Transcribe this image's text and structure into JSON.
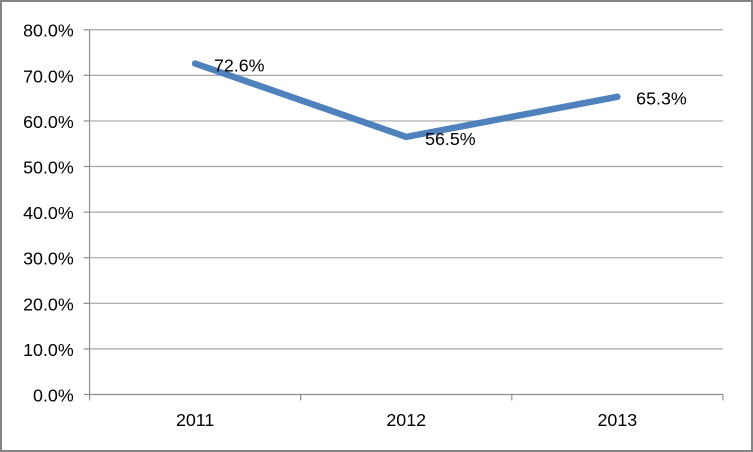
{
  "chart_data": {
    "type": "line",
    "title": "",
    "xlabel": "",
    "ylabel": "",
    "categories": [
      "2011",
      "2012",
      "2013"
    ],
    "values": [
      72.6,
      56.5,
      65.3
    ],
    "data_labels": [
      "72.6%",
      "56.5%",
      "65.3%"
    ],
    "ylim": [
      0,
      80
    ],
    "y_tick_interval": 10,
    "y_tick_labels": [
      "0.0%",
      "10.0%",
      "20.0%",
      "30.0%",
      "40.0%",
      "50.0%",
      "60.0%",
      "70.0%",
      "80.0%"
    ],
    "grid": true,
    "legend": false,
    "colors": {
      "line": "#4F81BD",
      "gridline": "#A6A6A6",
      "axis": "#8E8E8E",
      "text": "#000000",
      "frame_border": "#848484",
      "background": "#FFFFFF"
    }
  }
}
